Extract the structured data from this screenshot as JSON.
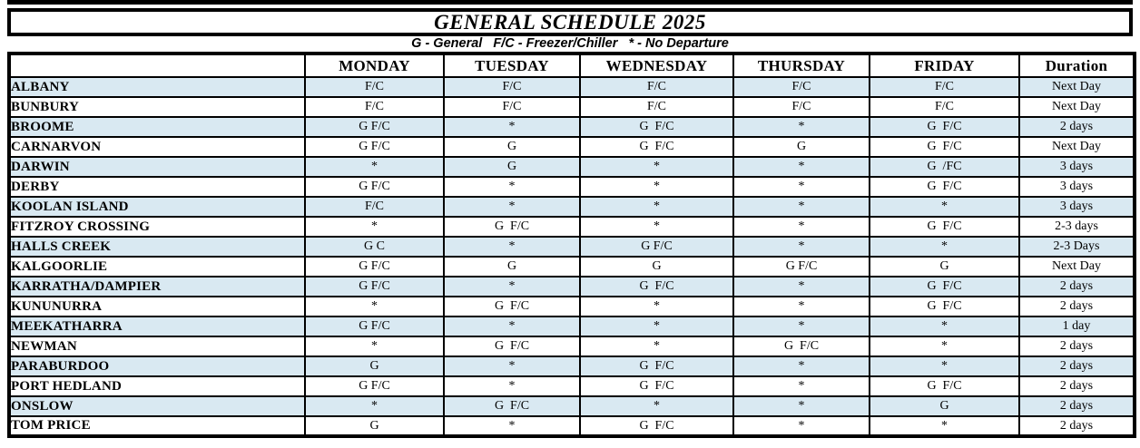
{
  "title": "GENERAL SCHEDULE 2025",
  "legend": "G - General   F/C - Freezer/Chiller   * - No Departure",
  "colors": {
    "shaded_row": "#D9E9F2",
    "border": "#000000",
    "background": "#FFFFFF"
  },
  "table": {
    "columns": [
      "",
      "MONDAY",
      "TUESDAY",
      "WEDNESDAY",
      "THURSDAY",
      "FRIDAY",
      "Duration"
    ],
    "rows": [
      {
        "city": "ALBANY",
        "days": [
          "F/C",
          "F/C",
          "F/C",
          "F/C",
          "F/C"
        ],
        "duration": "Next Day"
      },
      {
        "city": "BUNBURY",
        "days": [
          "F/C",
          "F/C",
          "F/C",
          "F/C",
          "F/C"
        ],
        "duration": "Next Day"
      },
      {
        "city": "BROOME",
        "days": [
          "G F/C",
          "*",
          "G  F/C",
          "*",
          "G  F/C"
        ],
        "duration": "2 days"
      },
      {
        "city": "CARNARVON",
        "days": [
          "G F/C",
          "G",
          "G  F/C",
          "G",
          "G  F/C"
        ],
        "duration": "Next Day"
      },
      {
        "city": "DARWIN",
        "days": [
          "*",
          "G",
          "*",
          "*",
          "G  /FC"
        ],
        "duration": "3 days"
      },
      {
        "city": "DERBY",
        "days": [
          "G F/C",
          "*",
          "*",
          "*",
          "G  F/C"
        ],
        "duration": "3 days"
      },
      {
        "city": "KOOLAN ISLAND",
        "days": [
          "F/C",
          "*",
          "*",
          "*",
          "*"
        ],
        "duration": "3 days"
      },
      {
        "city": "FITZROY CROSSING",
        "days": [
          "*",
          "G  F/C",
          "*",
          "*",
          "G  F/C"
        ],
        "duration": "2-3 days"
      },
      {
        "city": "HALLS CREEK",
        "days": [
          "G C",
          "*",
          "G F/C",
          "*",
          "*"
        ],
        "duration": "2-3 Days"
      },
      {
        "city": "KALGOORLIE",
        "days": [
          "G F/C",
          "G",
          "G",
          "G F/C",
          "G"
        ],
        "duration": "Next Day"
      },
      {
        "city": "KARRATHA/DAMPIER",
        "days": [
          "G F/C",
          "*",
          "G  F/C",
          "*",
          "G  F/C"
        ],
        "duration": "2 days"
      },
      {
        "city": "KUNUNURRA",
        "days": [
          "*",
          "G  F/C",
          "*",
          "*",
          "G  F/C"
        ],
        "duration": "2 days"
      },
      {
        "city": "MEEKATHARRA",
        "days": [
          "G F/C",
          "*",
          "*",
          "*",
          "*"
        ],
        "duration": "1 day"
      },
      {
        "city": "NEWMAN",
        "days": [
          "*",
          "G  F/C",
          "*",
          "G  F/C",
          "*"
        ],
        "duration": "2 days"
      },
      {
        "city": "PARABURDOO",
        "days": [
          "G",
          "*",
          "G  F/C",
          "*",
          "*"
        ],
        "duration": "2 days"
      },
      {
        "city": "PORT HEDLAND",
        "days": [
          "G F/C",
          "*",
          "G  F/C",
          "*",
          "G  F/C"
        ],
        "duration": "2 days"
      },
      {
        "city": "ONSLOW",
        "days": [
          "*",
          "G  F/C",
          "*",
          "*",
          "G"
        ],
        "duration": "2 days"
      },
      {
        "city": "TOM PRICE",
        "days": [
          "G",
          "*",
          "G  F/C",
          "*",
          "*"
        ],
        "duration": "2 days"
      }
    ]
  }
}
